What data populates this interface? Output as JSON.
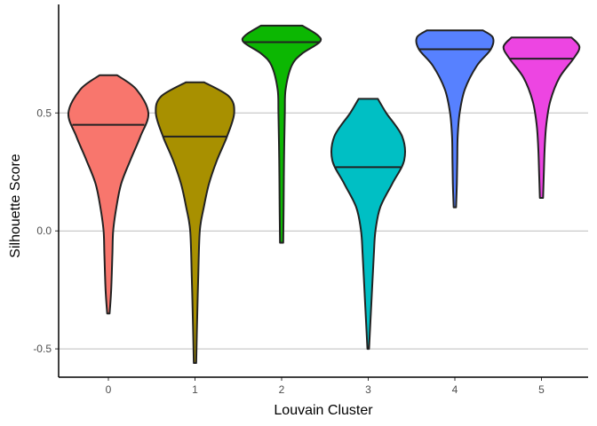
{
  "chart_data": {
    "type": "violin",
    "xlabel": "Louvain Cluster",
    "ylabel": "Silhouette Score",
    "ylim": [
      -0.62,
      0.96
    ],
    "yticks": [
      -0.5,
      0.0,
      0.5
    ],
    "ytick_labels": [
      "-0.5",
      "0.0",
      "0.5"
    ],
    "grid": "horizontal-major",
    "legend": "none",
    "categories": [
      "0",
      "1",
      "2",
      "3",
      "4",
      "5"
    ],
    "violins": [
      {
        "category": "0",
        "color": "#F8766D",
        "median": 0.45,
        "min": -0.35,
        "max": 0.66,
        "profile": [
          [
            -0.35,
            0.03
          ],
          [
            -0.25,
            0.07
          ],
          [
            -0.1,
            0.1
          ],
          [
            0.0,
            0.12
          ],
          [
            0.1,
            0.2
          ],
          [
            0.2,
            0.32
          ],
          [
            0.3,
            0.55
          ],
          [
            0.4,
            0.8
          ],
          [
            0.5,
            1.0
          ],
          [
            0.6,
            0.7
          ],
          [
            0.66,
            0.22
          ]
        ]
      },
      {
        "category": "1",
        "color": "#A89000",
        "median": 0.4,
        "min": -0.56,
        "max": 0.63,
        "profile": [
          [
            -0.56,
            0.03
          ],
          [
            -0.4,
            0.05
          ],
          [
            -0.2,
            0.08
          ],
          [
            0.0,
            0.12
          ],
          [
            0.1,
            0.22
          ],
          [
            0.2,
            0.35
          ],
          [
            0.3,
            0.55
          ],
          [
            0.4,
            0.8
          ],
          [
            0.5,
            0.98
          ],
          [
            0.57,
            0.85
          ],
          [
            0.63,
            0.23
          ]
        ]
      },
      {
        "category": "2",
        "color": "#0CB702",
        "median": 0.8,
        "min": -0.05,
        "max": 0.87,
        "profile": [
          [
            -0.05,
            0.04
          ],
          [
            0.1,
            0.05
          ],
          [
            0.3,
            0.06
          ],
          [
            0.5,
            0.08
          ],
          [
            0.6,
            0.1
          ],
          [
            0.7,
            0.25
          ],
          [
            0.75,
            0.5
          ],
          [
            0.8,
            0.95
          ],
          [
            0.83,
            0.9
          ],
          [
            0.87,
            0.52
          ]
        ]
      },
      {
        "category": "3",
        "color": "#00BFC4",
        "median": 0.27,
        "min": -0.5,
        "max": 0.56,
        "profile": [
          [
            -0.5,
            0.02
          ],
          [
            -0.3,
            0.08
          ],
          [
            -0.1,
            0.14
          ],
          [
            0.0,
            0.18
          ],
          [
            0.1,
            0.3
          ],
          [
            0.2,
            0.6
          ],
          [
            0.3,
            0.9
          ],
          [
            0.4,
            0.85
          ],
          [
            0.5,
            0.45
          ],
          [
            0.56,
            0.24
          ]
        ]
      },
      {
        "category": "4",
        "color": "#5781FF",
        "median": 0.77,
        "min": 0.1,
        "max": 0.85,
        "profile": [
          [
            0.1,
            0.03
          ],
          [
            0.2,
            0.05
          ],
          [
            0.3,
            0.06
          ],
          [
            0.4,
            0.07
          ],
          [
            0.5,
            0.12
          ],
          [
            0.6,
            0.25
          ],
          [
            0.7,
            0.55
          ],
          [
            0.77,
            0.9
          ],
          [
            0.82,
            0.95
          ],
          [
            0.85,
            0.7
          ]
        ]
      },
      {
        "category": "5",
        "color": "#ED45E2",
        "median": 0.73,
        "min": 0.14,
        "max": 0.82,
        "profile": [
          [
            0.14,
            0.04
          ],
          [
            0.25,
            0.06
          ],
          [
            0.35,
            0.08
          ],
          [
            0.45,
            0.12
          ],
          [
            0.55,
            0.22
          ],
          [
            0.65,
            0.45
          ],
          [
            0.73,
            0.8
          ],
          [
            0.78,
            0.95
          ],
          [
            0.82,
            0.75
          ]
        ]
      }
    ]
  }
}
